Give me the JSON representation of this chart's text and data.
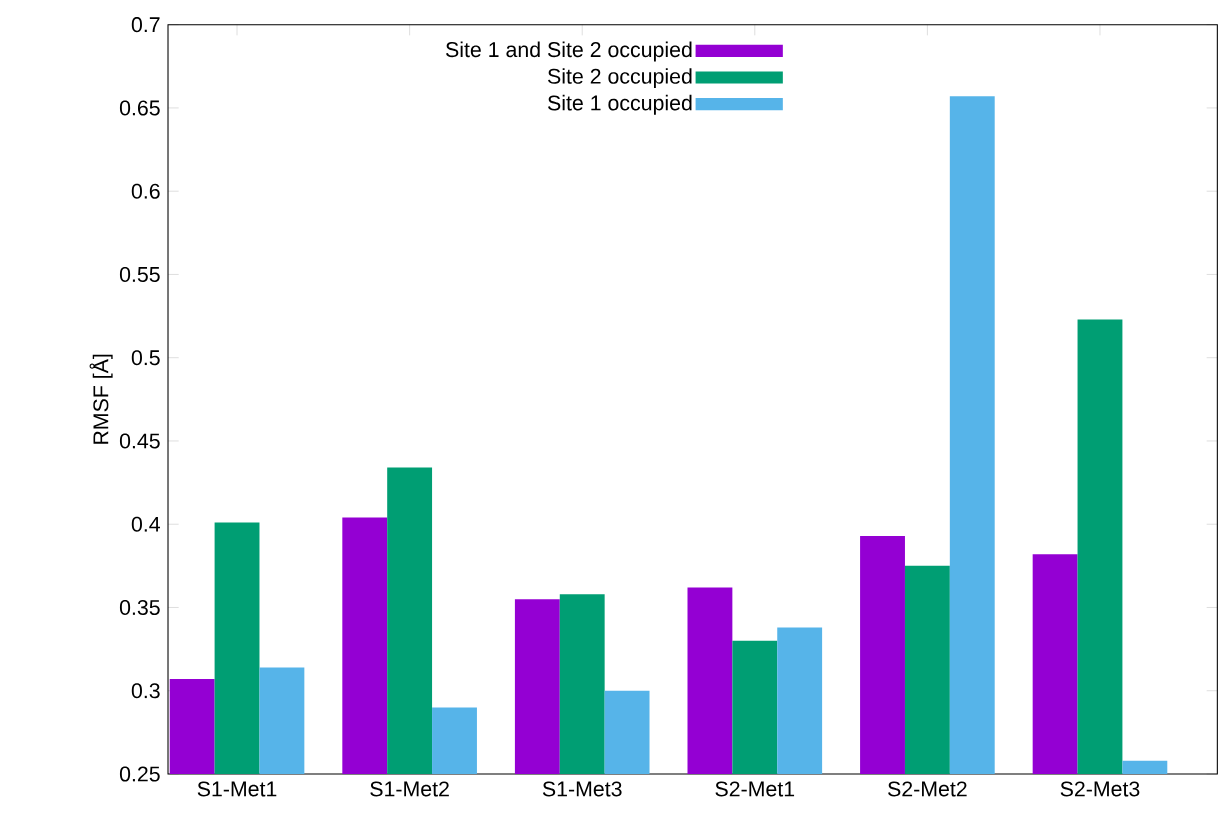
{
  "chart_data": {
    "type": "bar",
    "ylabel": "RMSF [Å]",
    "categories": [
      "S1-Met1",
      "S1-Met2",
      "S1-Met3",
      "S2-Met1",
      "S2-Met2",
      "S2-Met3"
    ],
    "series": [
      {
        "name": "Site 1 and Site 2 occupied",
        "color": "#9400d3",
        "values": [
          0.307,
          0.404,
          0.355,
          0.362,
          0.393,
          0.382
        ]
      },
      {
        "name": "Site 2 occupied",
        "color": "#009e73",
        "values": [
          0.401,
          0.434,
          0.358,
          0.33,
          0.375,
          0.523
        ]
      },
      {
        "name": "Site 1 occupied",
        "color": "#56b4e9",
        "values": [
          0.314,
          0.29,
          0.3,
          0.338,
          0.657,
          0.258
        ]
      }
    ],
    "ylim": [
      0.25,
      0.7
    ],
    "yticks": [
      0.25,
      0.3,
      0.35,
      0.4,
      0.45,
      0.5,
      0.55,
      0.6,
      0.65,
      0.7
    ],
    "legend": "top",
    "grid": false
  }
}
